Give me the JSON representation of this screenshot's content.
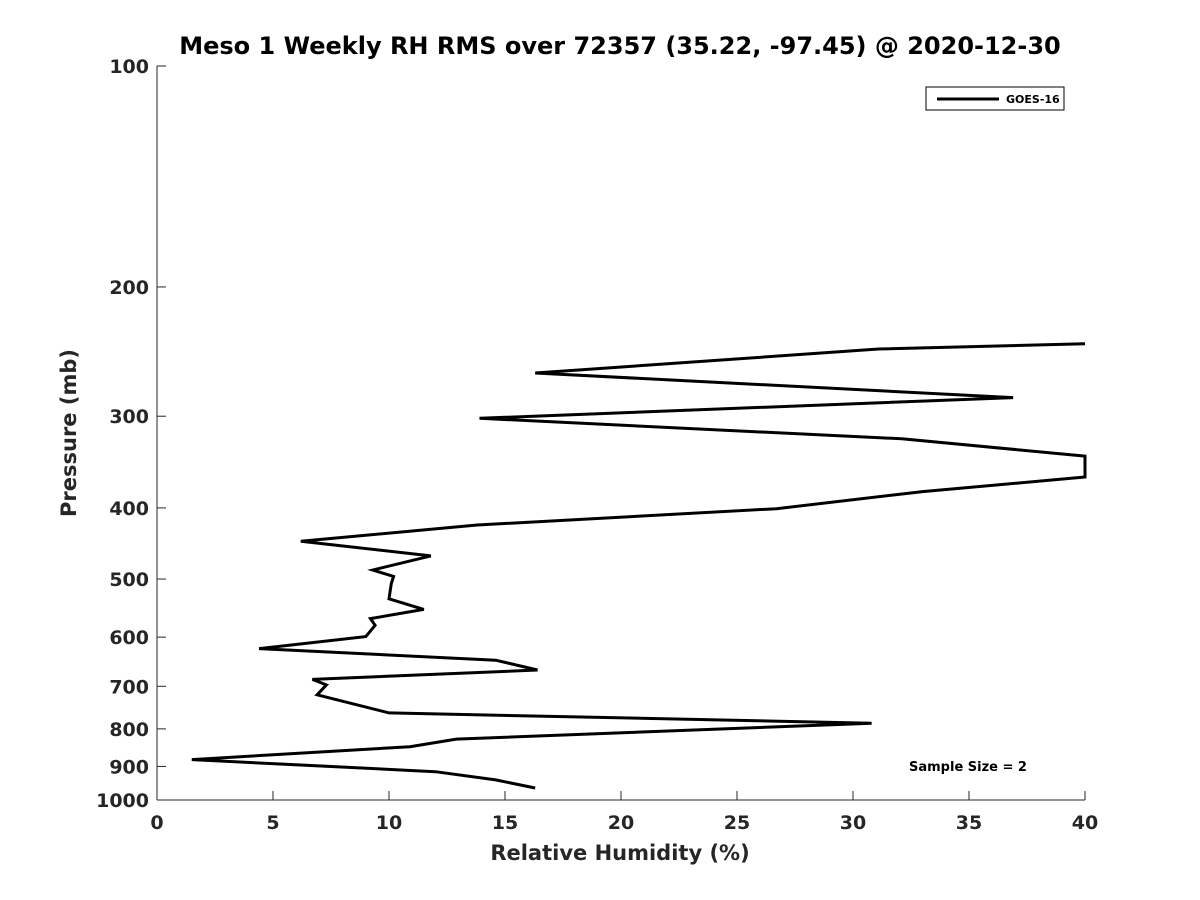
{
  "chart_data": {
    "type": "line",
    "title": "Meso 1 Weekly RH RMS over 72357 (35.22, -97.45) @ 2020-12-30",
    "xlabel": "Relative Humidity (%)",
    "ylabel": "Pressure (mb)",
    "xlim": [
      0,
      40
    ],
    "ylim": [
      100,
      1000
    ],
    "y_scale": "log",
    "y_reversed": true,
    "x_ticks": [
      0,
      5,
      10,
      15,
      20,
      25,
      30,
      35,
      40
    ],
    "y_ticks": [
      100,
      200,
      300,
      400,
      500,
      600,
      700,
      800,
      900,
      1000
    ],
    "grid": false,
    "legend_position": "top-right",
    "line_color": "#000000",
    "series": [
      {
        "name": "GOES-16",
        "x": [
          40.0,
          31.1,
          16.3,
          36.9,
          13.9,
          32.1,
          40.0,
          40.0,
          33.0,
          26.7,
          13.8,
          6.2,
          11.8,
          9.3,
          10.2,
          10.1,
          10.0,
          11.5,
          9.2,
          9.4,
          9.0,
          4.4,
          14.6,
          16.4,
          6.7,
          7.3,
          6.9,
          10.0,
          30.8,
          12.9,
          10.9,
          1.5,
          12.0,
          14.6,
          16.3
        ],
        "y": [
          239,
          243,
          262,
          283,
          302,
          322,
          340,
          363,
          380,
          401,
          422,
          444,
          465,
          486,
          496,
          507,
          532,
          550,
          566,
          578,
          599,
          622,
          645,
          665,
          685,
          697,
          719,
          761,
          786,
          826,
          846,
          881,
          915,
          939,
          963
        ]
      }
    ],
    "annotations": [
      "Sample Size = 2"
    ]
  }
}
